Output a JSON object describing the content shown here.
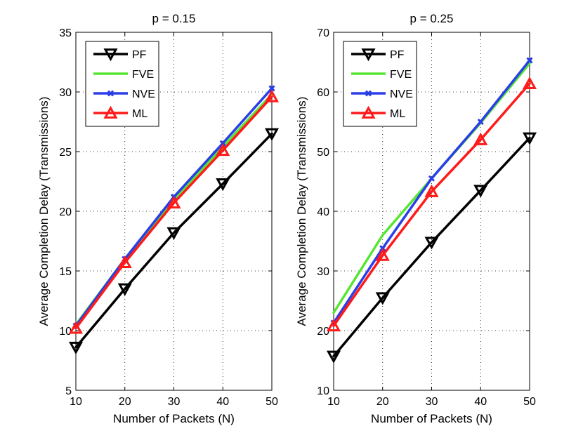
{
  "chart_data": [
    {
      "type": "line",
      "title": "p = 0.15",
      "xlabel": "Number of Packets (N)",
      "ylabel": "Average Completion Delay (Transmissions)",
      "x": [
        10,
        20,
        30,
        40,
        50
      ],
      "xlim": [
        10,
        50
      ],
      "ylim": [
        5,
        35
      ],
      "xticks": [
        10,
        20,
        30,
        40,
        50
      ],
      "yticks": [
        5,
        10,
        15,
        20,
        25,
        30,
        35
      ],
      "grid": true,
      "legend_position": "top-left",
      "series": [
        {
          "name": "PF",
          "color": "#000000",
          "marker": "triangle-down",
          "values": [
            8.6,
            13.5,
            18.2,
            22.3,
            26.5
          ]
        },
        {
          "name": "FVE",
          "color": "#55e632",
          "marker": "none",
          "values": [
            10.5,
            16.0,
            21.0,
            25.4,
            29.8
          ]
        },
        {
          "name": "NVE",
          "color": "#2a3ee8",
          "marker": "x",
          "values": [
            10.4,
            16.0,
            21.2,
            25.7,
            30.3
          ]
        },
        {
          "name": "ML",
          "color": "#ff1a1a",
          "marker": "triangle-up",
          "values": [
            10.2,
            15.7,
            20.7,
            25.1,
            29.6
          ]
        }
      ]
    },
    {
      "type": "line",
      "title": "p = 0.25",
      "xlabel": "Number of Packets (N)",
      "ylabel": "Average Completion Delay (Transmissions)",
      "x": [
        10,
        20,
        30,
        40,
        50
      ],
      "xlim": [
        10,
        50
      ],
      "ylim": [
        10,
        70
      ],
      "xticks": [
        10,
        20,
        30,
        40,
        50
      ],
      "yticks": [
        10,
        20,
        30,
        40,
        50,
        60,
        70
      ],
      "grid": true,
      "legend_position": "top-left",
      "series": [
        {
          "name": "PF",
          "color": "#000000",
          "marker": "triangle-down",
          "values": [
            15.7,
            25.5,
            34.8,
            43.5,
            52.3
          ]
        },
        {
          "name": "FVE",
          "color": "#55e632",
          "marker": "none",
          "values": [
            23.0,
            36.0,
            45.5,
            54.8,
            64.8
          ]
        },
        {
          "name": "NVE",
          "color": "#2a3ee8",
          "marker": "x",
          "values": [
            21.3,
            33.8,
            45.5,
            55.0,
            65.3
          ]
        },
        {
          "name": "ML",
          "color": "#ff1a1a",
          "marker": "triangle-up",
          "values": [
            20.8,
            32.6,
            43.3,
            52.0,
            61.4
          ]
        }
      ]
    }
  ]
}
